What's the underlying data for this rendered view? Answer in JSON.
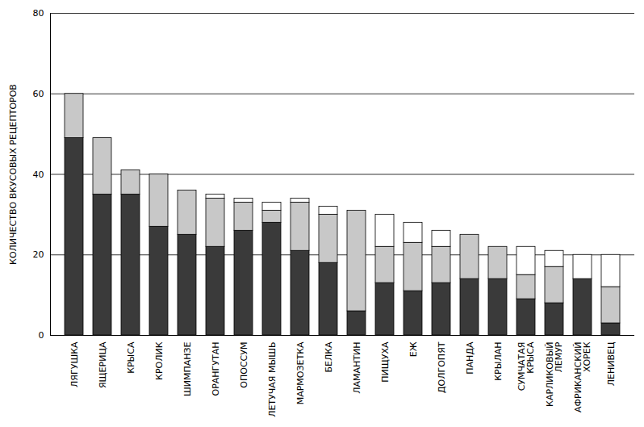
{
  "chart_data": {
    "type": "bar",
    "stacked": true,
    "grid": true,
    "y_label": "КОЛИЧЕСТВО ВКУСОВЫХ РЕЦЕПТОРОВ",
    "categories": [
      "ЛЯГУШКА",
      "ЯЩЕРИЦА",
      "КРЫСА",
      "КРОЛИК",
      "ШИМПАНЗЕ",
      "ОРАНГУТАН",
      "ОПОССУМ",
      "ЛЕТУЧАЯ МЫШЬ",
      "МАРМОЗЕТКА",
      "БЕЛКА",
      "ЛАМАНТИН",
      "ПИЩУХА",
      "ЕЖ",
      "ДОЛГОПЯТ",
      "ПАНДА",
      "КРЫЛАН",
      "СУМЧАТАЯ КРЫСА",
      "КАРЛИКОВЫЙ ЛЕМУР",
      "АФРИКАНСКИЙ ХОРЕК",
      "ЛЕНИВЕЦ"
    ],
    "series": [
      {
        "color": "#3a3a3a",
        "values": [
          49,
          35,
          35,
          27,
          25,
          22,
          26,
          28,
          21,
          18,
          6,
          13,
          11,
          13,
          14,
          14,
          9,
          8,
          14,
          3
        ]
      },
      {
        "color": "#c8c8c8",
        "values": [
          11,
          14,
          6,
          13,
          11,
          12,
          7,
          3,
          12,
          12,
          25,
          9,
          12,
          9,
          11,
          8,
          6,
          9,
          0,
          9
        ]
      },
      {
        "color": "#ffffff",
        "values": [
          0,
          0,
          0,
          0,
          0,
          1,
          1,
          2,
          1,
          2,
          0,
          8,
          5,
          4,
          0,
          0,
          7,
          4,
          6,
          8
        ]
      }
    ],
    "ylim": [
      0,
      80
    ],
    "yticks": [
      0,
      20,
      40,
      60,
      80
    ]
  }
}
